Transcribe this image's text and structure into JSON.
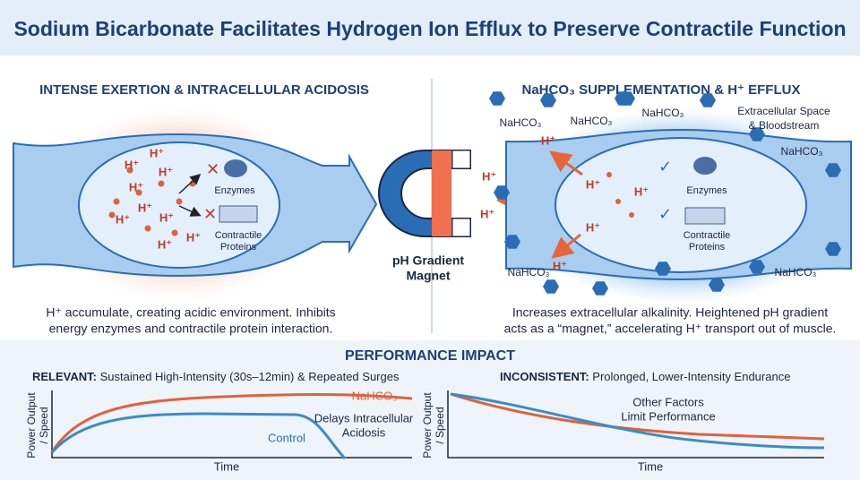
{
  "title": "Sodium Bicarbonate Facilitates Hydrogen Ion Efflux to Preserve Contractile Function",
  "left_panel": {
    "heading": "INTENSE EXERTION & INTRACELLULAR ACIDOSIS",
    "ions": [
      "H⁺",
      "H⁺",
      "H⁺",
      "H⁺",
      "H⁺",
      "H⁺",
      "H⁺",
      "H⁺",
      "H⁺"
    ],
    "enzymes": "Enzymes",
    "proteins": [
      "Contractile",
      "Proteins"
    ],
    "caption": [
      "H⁺ accumulate, creating acidic environment. Inhibits",
      "energy enzymes and contractile protein interaction."
    ]
  },
  "magnet": {
    "label": [
      "pH Gradient",
      "Magnet"
    ],
    "ions": [
      "H⁺",
      "H⁺"
    ]
  },
  "right_panel": {
    "heading": "NaHCO₃ SUPPLEMENTATION & H⁺ EFFLUX",
    "extracellular": [
      "Extracellular Space",
      "& Bloodstream"
    ],
    "bicarbonate_labels": [
      "NaHCO₃",
      "NaHCO₃",
      "NaHCO₃",
      "NaHCO₃",
      "NaHCO₃",
      "NaHCO₃"
    ],
    "ions": [
      "H⁺",
      "H⁺",
      "H⁺",
      "H⁺",
      "H⁺"
    ],
    "enzymes": "Enzymes",
    "proteins": [
      "Contractile",
      "Proteins"
    ],
    "caption": [
      "Increases extracellular alkalinity. Heightened pH gradient",
      "acts as a “magnet,” accelerating H⁺ transport out of muscle."
    ]
  },
  "performance": {
    "heading": "PERFORMANCE IMPACT",
    "relevant": {
      "label": "RELEVANT:",
      "text": "Sustained High-Intensity (30s–12min) & Repeated Surges",
      "y_label": [
        "Power Output",
        "/ Speed"
      ],
      "x_label": "Time",
      "series_labels": [
        "NaHCO₃",
        "Control"
      ],
      "annotation": [
        "Delays Intracellular",
        "Acidosis"
      ]
    },
    "inconsistent": {
      "label": "INCONSISTENT:",
      "text": "Prolonged, Lower-Intensity Endurance",
      "y_label": [
        "Power Output",
        "/ Speed"
      ],
      "x_label": "Time",
      "annotation": [
        "Other Factors",
        "Limit Performance"
      ]
    }
  }
}
